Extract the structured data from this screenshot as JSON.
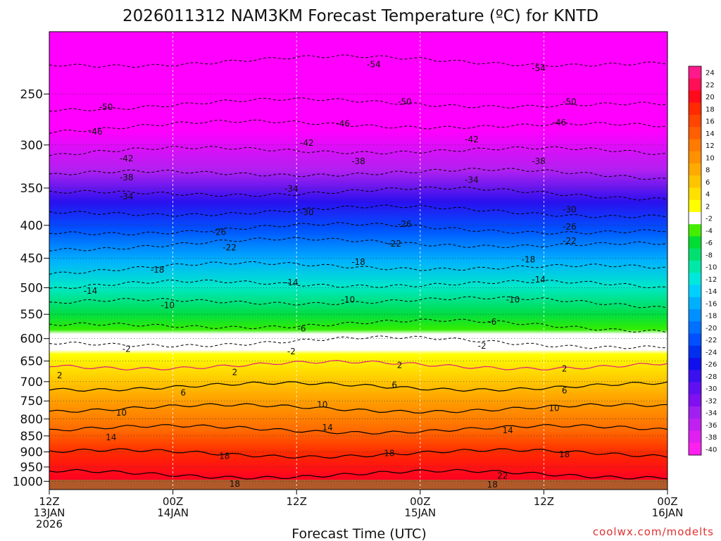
{
  "chart_data": {
    "type": "heatmap",
    "title": "2026011312 NAM3KM Forecast Temperature (ºC) for KNTD",
    "xlabel": "Forecast Time (UTC)",
    "ylabel": "",
    "x_range_hours": [
      0,
      60
    ],
    "y_range_hpa": [
      1030,
      200
    ],
    "y_scale": "log-pressure",
    "y_ticks": [
      250,
      300,
      350,
      400,
      450,
      500,
      550,
      600,
      650,
      700,
      750,
      800,
      850,
      900,
      950,
      1000
    ],
    "x_ticks": [
      {
        "hour": 0,
        "line1": "12Z",
        "line2": "13JAN",
        "line3": "2026"
      },
      {
        "hour": 12,
        "line1": "00Z",
        "line2": "14JAN",
        "line3": ""
      },
      {
        "hour": 24,
        "line1": "12Z",
        "line2": "",
        "line3": ""
      },
      {
        "hour": 36,
        "line1": "00Z",
        "line2": "15JAN",
        "line3": ""
      },
      {
        "hour": 48,
        "line1": "12Z",
        "line2": "",
        "line3": ""
      },
      {
        "hour": 60,
        "line1": "00Z",
        "line2": "16JAN",
        "line3": ""
      }
    ],
    "colorbar": {
      "labels": [
        "24",
        "22",
        "20",
        "18",
        "16",
        "14",
        "12",
        "10",
        "8",
        "6",
        "4",
        "2",
        "-2",
        "-4",
        "-6",
        "-8",
        "-10",
        "-12",
        "-14",
        "-16",
        "-18",
        "-20",
        "-22",
        "-24",
        "-26",
        "-28",
        "-30",
        "-32",
        "-34",
        "-36",
        "-38",
        "-40"
      ],
      "colors": [
        "#ff1a8c",
        "#ff0f55",
        "#ff0a1a",
        "#ff2a00",
        "#ff4500",
        "#ff5f00",
        "#ff7a00",
        "#ff9000",
        "#ffaa00",
        "#ffc400",
        "#ffe000",
        "#ffff00",
        "#ffffff",
        "#44ee00",
        "#00dd33",
        "#00e070",
        "#00e8a8",
        "#00e8dd",
        "#00d0ff",
        "#00b0ff",
        "#0090ff",
        "#0070ff",
        "#0050ff",
        "#0030ee",
        "#1010ee",
        "#3a10ee",
        "#6010f0",
        "#8010f0",
        "#a020f0",
        "#c020f0",
        "#e020f0",
        "#ff20f0"
      ]
    },
    "contour_levels": [
      {
        "value": -54,
        "p": 225
      },
      {
        "value": -50,
        "p": 262
      },
      {
        "value": -46,
        "p": 283
      },
      {
        "value": -42,
        "p": 310
      },
      {
        "value": -38,
        "p": 336
      },
      {
        "value": -34,
        "p": 360
      },
      {
        "value": -30,
        "p": 385
      },
      {
        "value": -26,
        "p": 410
      },
      {
        "value": -22,
        "p": 432
      },
      {
        "value": -18,
        "p": 470
      },
      {
        "value": -14,
        "p": 500
      },
      {
        "value": -10,
        "p": 532
      },
      {
        "value": -6,
        "p": 578
      },
      {
        "value": -2,
        "p": 615
      },
      {
        "value": 2,
        "p": 660
      },
      {
        "value": 6,
        "p": 712
      },
      {
        "value": 10,
        "p": 770
      },
      {
        "value": 14,
        "p": 830
      },
      {
        "value": 18,
        "p": 905
      },
      {
        "value": 22,
        "p": 975
      }
    ],
    "labels_shown": [
      {
        "text": "-54",
        "hour": 31.5,
        "p": 225
      },
      {
        "text": "-54",
        "hour": 47.5,
        "p": 228
      },
      {
        "text": "-50",
        "hour": 5.5,
        "p": 262
      },
      {
        "text": "-50",
        "hour": 34.5,
        "p": 257
      },
      {
        "text": "-50",
        "hour": 50.5,
        "p": 257
      },
      {
        "text": "-46",
        "hour": 4.5,
        "p": 286
      },
      {
        "text": "-46",
        "hour": 28.5,
        "p": 278
      },
      {
        "text": "-46",
        "hour": 49.5,
        "p": 277
      },
      {
        "text": "-42",
        "hour": 7.5,
        "p": 315
      },
      {
        "text": "-42",
        "hour": 25,
        "p": 298
      },
      {
        "text": "-42",
        "hour": 41,
        "p": 294
      },
      {
        "text": "-38",
        "hour": 7.5,
        "p": 337
      },
      {
        "text": "-38",
        "hour": 30,
        "p": 318
      },
      {
        "text": "-38",
        "hour": 47.5,
        "p": 318
      },
      {
        "text": "-34",
        "hour": 7.5,
        "p": 361
      },
      {
        "text": "-34",
        "hour": 23.5,
        "p": 351
      },
      {
        "text": "-34",
        "hour": 41,
        "p": 340
      },
      {
        "text": "-30",
        "hour": 25,
        "p": 382
      },
      {
        "text": "-30",
        "hour": 50.5,
        "p": 378
      },
      {
        "text": "-26",
        "hour": 16.5,
        "p": 410
      },
      {
        "text": "-26",
        "hour": 34.5,
        "p": 398
      },
      {
        "text": "-26",
        "hour": 50.5,
        "p": 402
      },
      {
        "text": "-22",
        "hour": 17.5,
        "p": 433
      },
      {
        "text": "-22",
        "hour": 33.5,
        "p": 427
      },
      {
        "text": "-22",
        "hour": 50.5,
        "p": 423
      },
      {
        "text": "-18",
        "hour": 10.5,
        "p": 469
      },
      {
        "text": "-18",
        "hour": 30,
        "p": 456
      },
      {
        "text": "-18",
        "hour": 46.5,
        "p": 452
      },
      {
        "text": "-14",
        "hour": 4,
        "p": 506
      },
      {
        "text": "-14",
        "hour": 23.5,
        "p": 491
      },
      {
        "text": "-14",
        "hour": 47.5,
        "p": 486
      },
      {
        "text": "-10",
        "hour": 11.5,
        "p": 533
      },
      {
        "text": "-10",
        "hour": 29,
        "p": 522
      },
      {
        "text": "-10",
        "hour": 45,
        "p": 522
      },
      {
        "text": "-6",
        "hour": 24.5,
        "p": 579
      },
      {
        "text": "-6",
        "hour": 43,
        "p": 565
      },
      {
        "text": "-2",
        "hour": 7.5,
        "p": 623
      },
      {
        "text": "-2",
        "hour": 23.5,
        "p": 628
      },
      {
        "text": "-2",
        "hour": 42,
        "p": 616
      },
      {
        "text": "2",
        "hour": 1,
        "p": 685
      },
      {
        "text": "2",
        "hour": 18,
        "p": 677
      },
      {
        "text": "2",
        "hour": 34,
        "p": 660
      },
      {
        "text": "2",
        "hour": 50,
        "p": 668
      },
      {
        "text": "6",
        "hour": 13,
        "p": 728
      },
      {
        "text": "6",
        "hour": 33.5,
        "p": 708
      },
      {
        "text": "6",
        "hour": 50,
        "p": 723
      },
      {
        "text": "10",
        "hour": 7,
        "p": 782
      },
      {
        "text": "10",
        "hour": 26.5,
        "p": 760
      },
      {
        "text": "10",
        "hour": 49,
        "p": 770
      },
      {
        "text": "14",
        "hour": 6,
        "p": 855
      },
      {
        "text": "14",
        "hour": 27,
        "p": 825
      },
      {
        "text": "14",
        "hour": 44.5,
        "p": 833
      },
      {
        "text": "18",
        "hour": 17,
        "p": 914
      },
      {
        "text": "18",
        "hour": 33,
        "p": 905
      },
      {
        "text": "18",
        "hour": 50,
        "p": 908
      },
      {
        "text": "18",
        "hour": 18,
        "p": 1009
      },
      {
        "text": "18",
        "hour": 43,
        "p": 1012
      },
      {
        "text": "22",
        "hour": 44,
        "p": 981
      }
    ],
    "grid": true,
    "legend": "right colorbar"
  },
  "footer": {
    "credit": "coolwx.com/modelts"
  }
}
